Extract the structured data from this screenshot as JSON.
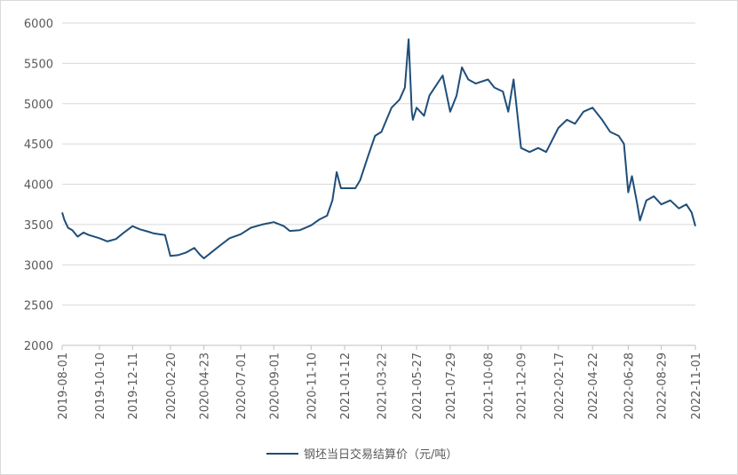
{
  "chart_data": {
    "type": "line",
    "title": "",
    "xlabel": "",
    "ylabel": "",
    "ylim": [
      2000,
      6000
    ],
    "yticks": [
      2000,
      2500,
      3000,
      3500,
      4000,
      4500,
      5000,
      5500,
      6000
    ],
    "xticks": [
      "2019-08-01",
      "2019-10-10",
      "2019-12-11",
      "2020-02-20",
      "2020-04-23",
      "2020-07-01",
      "2020-09-01",
      "2020-11-10",
      "2021-01-12",
      "2021-03-22",
      "2021-05-27",
      "2021-07-29",
      "2021-10-08",
      "2021-12-09",
      "2022-02-17",
      "2022-04-22",
      "2022-06-28",
      "2022-08-29",
      "2022-11-01"
    ],
    "grid": true,
    "legend": "bottom-center",
    "line_color": "#1f4e79",
    "series": [
      {
        "name": "钢坯当日交易结算价（元/吨）",
        "x": [
          "2019-08-01",
          "2019-08-05",
          "2019-08-12",
          "2019-08-20",
          "2019-08-30",
          "2019-09-10",
          "2019-09-20",
          "2019-10-10",
          "2019-10-25",
          "2019-11-10",
          "2019-11-25",
          "2019-12-11",
          "2019-12-25",
          "2020-01-10",
          "2020-01-20",
          "2020-02-10",
          "2020-02-20",
          "2020-03-05",
          "2020-03-20",
          "2020-04-05",
          "2020-04-15",
          "2020-04-23",
          "2020-05-10",
          "2020-05-25",
          "2020-06-10",
          "2020-07-01",
          "2020-07-20",
          "2020-08-10",
          "2020-09-01",
          "2020-09-20",
          "2020-10-01",
          "2020-10-20",
          "2020-11-10",
          "2020-11-25",
          "2020-12-10",
          "2020-12-20",
          "2020-12-28",
          "2021-01-05",
          "2021-01-12",
          "2021-02-01",
          "2021-02-10",
          "2021-02-25",
          "2021-03-10",
          "2021-03-22",
          "2021-04-10",
          "2021-04-25",
          "2021-05-05",
          "2021-05-12",
          "2021-05-14",
          "2021-05-18",
          "2021-05-20",
          "2021-05-27",
          "2021-06-10",
          "2021-06-20",
          "2021-07-05",
          "2021-07-15",
          "2021-07-29",
          "2021-08-10",
          "2021-08-20",
          "2021-09-01",
          "2021-09-15",
          "2021-10-08",
          "2021-10-20",
          "2021-11-05",
          "2021-11-15",
          "2021-11-25",
          "2021-12-09",
          "2021-12-25",
          "2022-01-10",
          "2022-01-25",
          "2022-02-17",
          "2022-03-05",
          "2022-03-20",
          "2022-04-05",
          "2022-04-22",
          "2022-05-10",
          "2022-05-25",
          "2022-06-10",
          "2022-06-20",
          "2022-06-28",
          "2022-07-05",
          "2022-07-15",
          "2022-07-20",
          "2022-08-01",
          "2022-08-15",
          "2022-08-29",
          "2022-09-15",
          "2022-10-01",
          "2022-10-15",
          "2022-10-25",
          "2022-11-01"
        ],
        "values": [
          3650,
          3560,
          3460,
          3430,
          3350,
          3400,
          3370,
          3330,
          3290,
          3320,
          3400,
          3480,
          3440,
          3410,
          3390,
          3370,
          3110,
          3120,
          3150,
          3210,
          3130,
          3080,
          3170,
          3250,
          3330,
          3380,
          3460,
          3500,
          3530,
          3480,
          3420,
          3430,
          3490,
          3560,
          3610,
          3800,
          4150,
          3950,
          3950,
          3950,
          4050,
          4350,
          4600,
          4650,
          4950,
          5050,
          5200,
          5800,
          5500,
          4900,
          4800,
          4950,
          4850,
          5100,
          5250,
          5350,
          4900,
          5100,
          5450,
          5300,
          5250,
          5300,
          5200,
          5150,
          4900,
          5300,
          4450,
          4400,
          4450,
          4400,
          4700,
          4800,
          4750,
          4900,
          4950,
          4800,
          4650,
          4600,
          4500,
          3900,
          4100,
          3750,
          3550,
          3800,
          3850,
          3750,
          3800,
          3700,
          3750,
          3650,
          3480
        ]
      }
    ]
  }
}
